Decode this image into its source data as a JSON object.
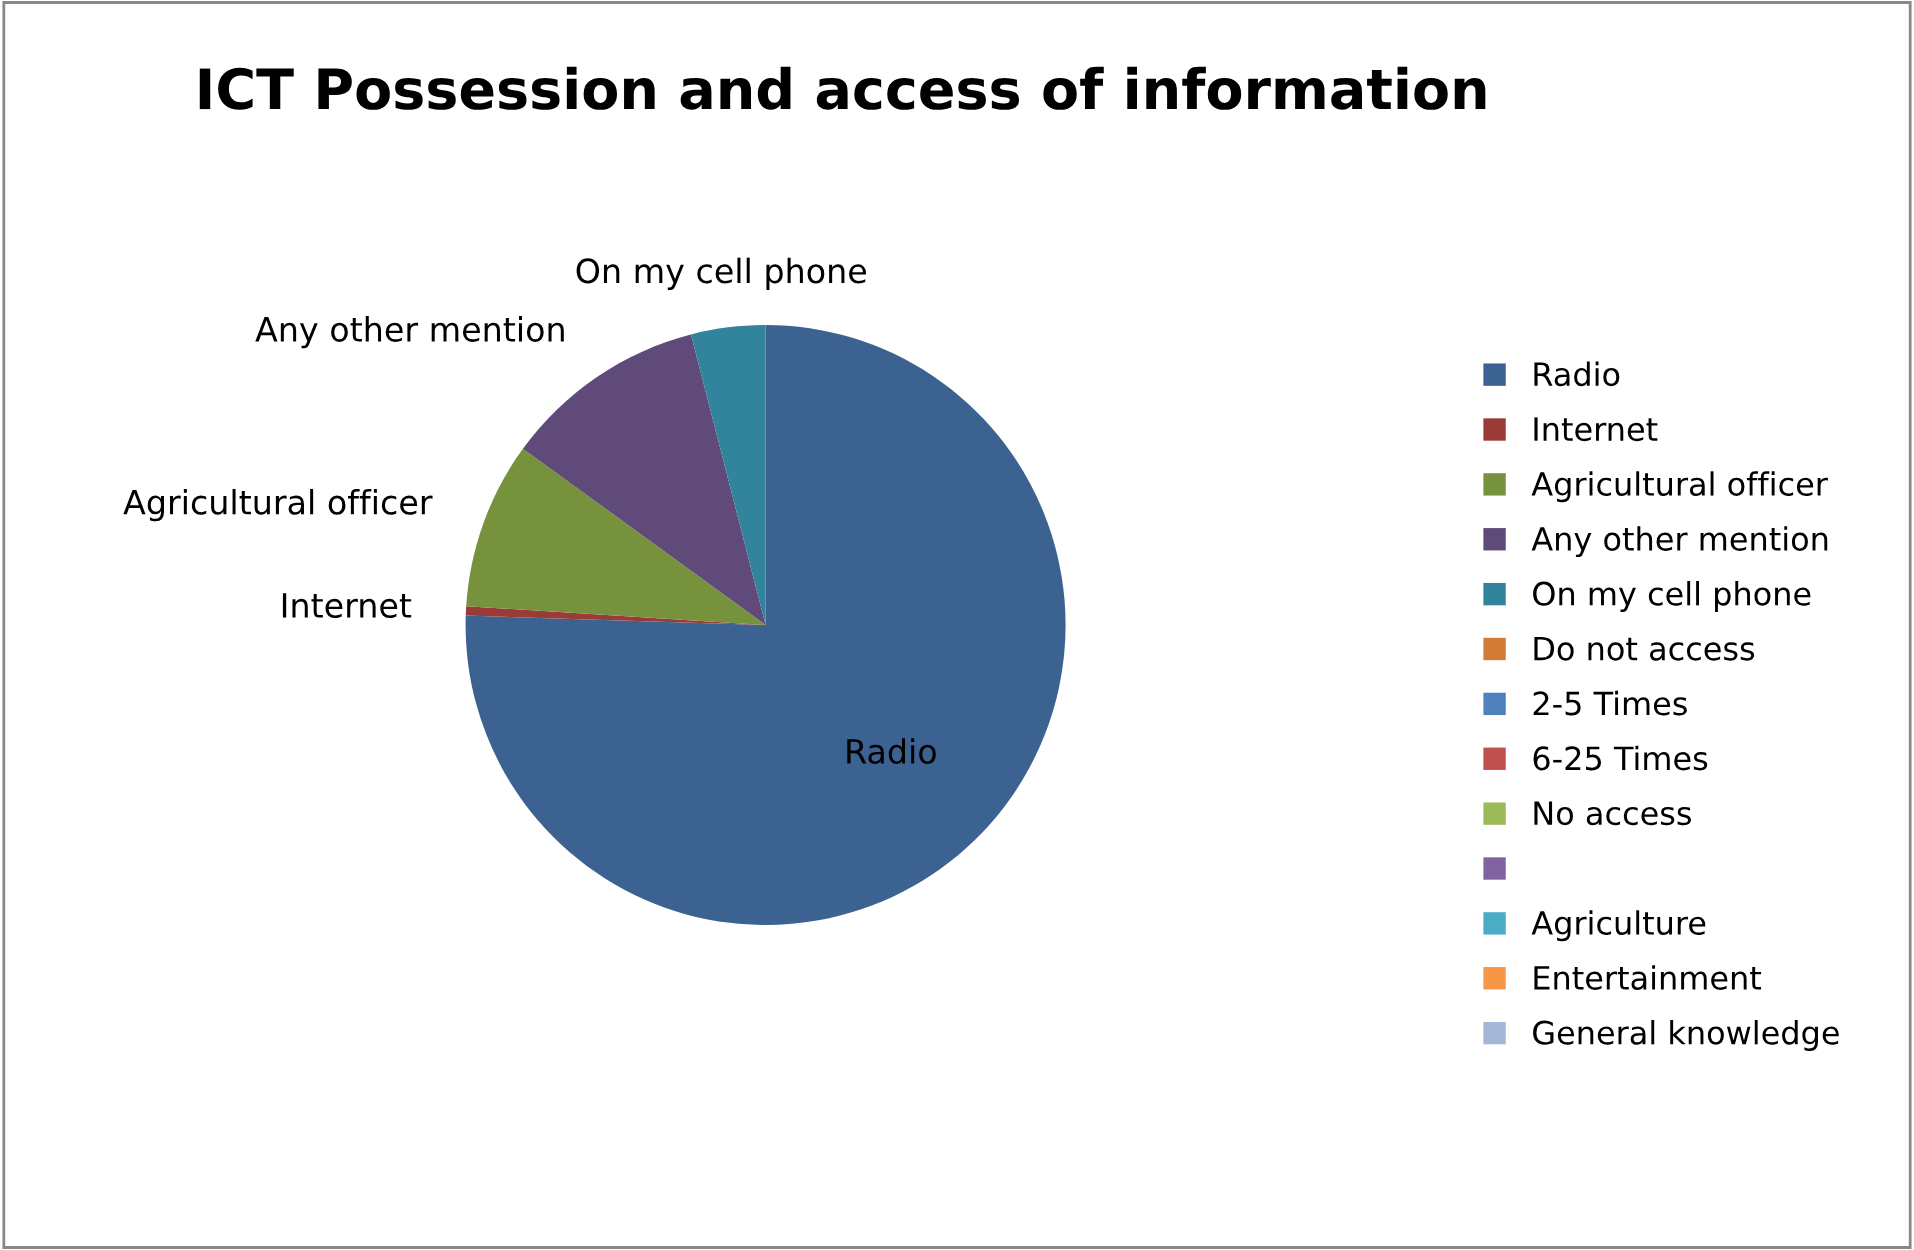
{
  "chart_data": {
    "type": "pie",
    "title": "ICT Possession and access of information",
    "categories": [
      "Radio",
      "Internet",
      "Agricultural officer",
      "Any other mention",
      "On my cell phone",
      "Do not access",
      "2-5 Times",
      "6-25 Times",
      "No access",
      null,
      "Agriculture",
      "Entertainment",
      "General knowledge"
    ],
    "values": [
      75.5,
      0.5,
      9,
      11,
      4,
      0,
      0,
      0,
      0,
      0,
      0,
      0,
      0
    ],
    "colors": [
      "#3c6291",
      "#9b3b38",
      "#76923c",
      "#5f4a7a",
      "#31849b",
      "#d27b36",
      "#4f81bd",
      "#c0504d",
      "#9bbb59",
      "#8064a2",
      "#4bacc6",
      "#f79646",
      "#a5b6d6"
    ],
    "legend": "right"
  }
}
